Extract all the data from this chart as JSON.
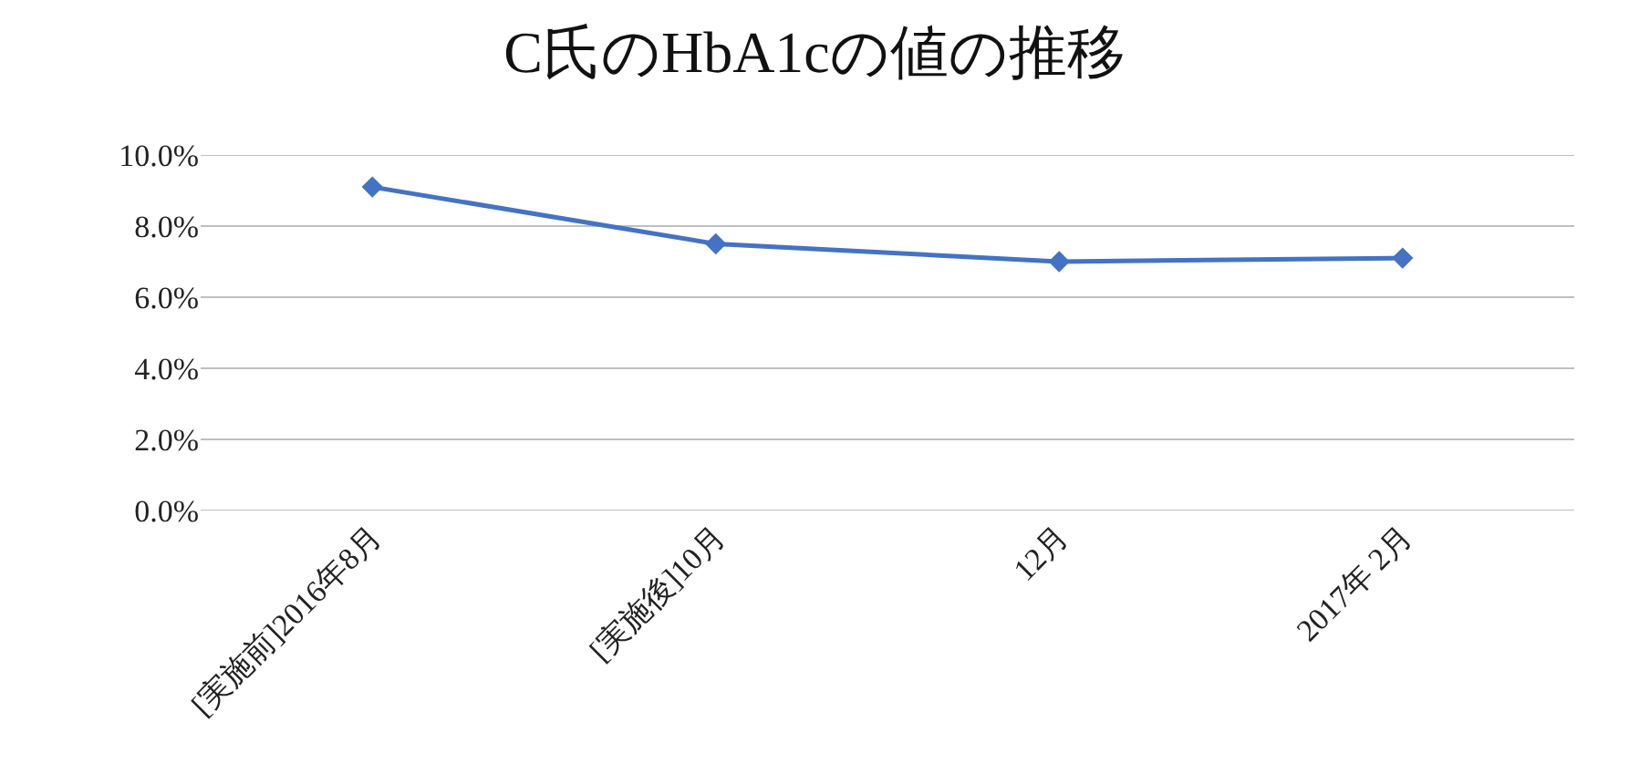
{
  "chart_data": {
    "type": "line",
    "title": "C氏のHbA1cの値の推移",
    "categories": [
      "[実施前]2016年8月",
      "[実施後]10月",
      "12月",
      "2017年 2月"
    ],
    "series": [
      {
        "color": "#4472c4",
        "values": [
          9.1,
          7.5,
          7.0,
          7.1
        ]
      }
    ],
    "ylim": [
      0,
      10
    ],
    "yticks": [
      {
        "value": 0,
        "label": "0.0%"
      },
      {
        "value": 2,
        "label": "2.0%"
      },
      {
        "value": 4,
        "label": "4.0%"
      },
      {
        "value": 6,
        "label": "6.0%"
      },
      {
        "value": 8,
        "label": "8.0%"
      },
      {
        "value": 10,
        "label": "10.0%"
      }
    ],
    "grid": "y",
    "marker": "diamond",
    "line_style": "solid"
  }
}
